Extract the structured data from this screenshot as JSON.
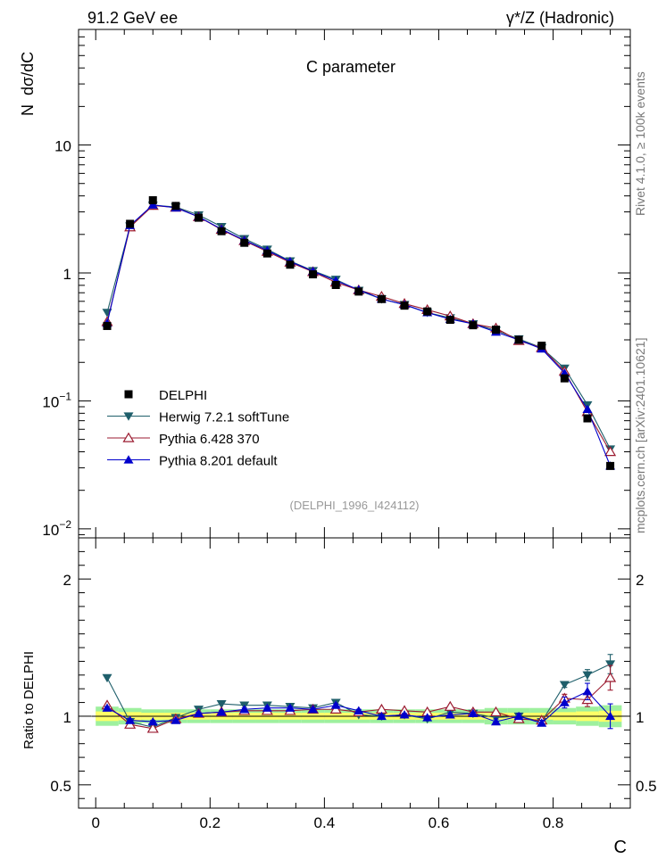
{
  "header": {
    "energy": "91.2 GeV ee",
    "process": "γ*/Z (Hadronic)"
  },
  "side_labels": {
    "rivet": "Rivet 4.1.0, ≥ 100k events",
    "mcplots": "mcplots.cern.ch [arXiv:2401.10621]"
  },
  "chart_data": [
    {
      "type": "line",
      "title": "C parameter",
      "ylabel": "N  dσ/dC",
      "yscale": "log",
      "xlim": [
        -0.03,
        0.935
      ],
      "ylim": [
        0.0085,
        80
      ],
      "watermark": "(DELPHI_1996_I424112)",
      "ytick_labels": [
        {
          "value": 10,
          "label": "10"
        },
        {
          "value": 1,
          "label": "1"
        },
        {
          "value": 0.1,
          "label": "10",
          "exp": "−1"
        },
        {
          "value": 0.01,
          "label": "10",
          "exp": "−2"
        }
      ],
      "x": [
        0.02,
        0.06,
        0.1,
        0.14,
        0.18,
        0.22,
        0.26,
        0.3,
        0.34,
        0.38,
        0.42,
        0.46,
        0.5,
        0.54,
        0.58,
        0.62,
        0.66,
        0.7,
        0.74,
        0.78,
        0.82,
        0.86,
        0.9
      ],
      "series": [
        {
          "name": "DELPHI",
          "style": "data",
          "color": "#000000",
          "values": [
            0.385,
            2.42,
            3.7,
            3.34,
            2.7,
            2.12,
            1.72,
            1.42,
            1.16,
            0.975,
            0.805,
            0.715,
            0.625,
            0.555,
            0.5,
            0.43,
            0.39,
            0.36,
            0.3,
            0.27,
            0.15,
            0.073,
            0.031
          ]
        },
        {
          "name": "Herwig 7.2.1 softTune",
          "style": "tri-down",
          "color": "#1f5f6b",
          "values": [
            0.49,
            2.32,
            3.38,
            3.28,
            2.84,
            2.3,
            1.85,
            1.53,
            1.24,
            1.04,
            0.89,
            0.73,
            0.625,
            0.565,
            0.49,
            0.445,
            0.4,
            0.355,
            0.305,
            0.26,
            0.18,
            0.093,
            0.042
          ]
        },
        {
          "name": "Pythia 6.428 370",
          "style": "tri-up-open",
          "color": "#9b1b30",
          "values": [
            0.415,
            2.28,
            3.36,
            3.25,
            2.74,
            2.18,
            1.78,
            1.47,
            1.21,
            1.02,
            0.845,
            0.735,
            0.655,
            0.575,
            0.515,
            0.46,
            0.4,
            0.37,
            0.295,
            0.26,
            0.17,
            0.082,
            0.04
          ]
        },
        {
          "name": "Pythia 8.201 default",
          "style": "tri-up",
          "color": "#0000cc",
          "values": [
            0.405,
            2.35,
            3.4,
            3.23,
            2.75,
            2.2,
            1.8,
            1.5,
            1.23,
            1.03,
            0.87,
            0.74,
            0.625,
            0.565,
            0.49,
            0.435,
            0.4,
            0.345,
            0.3,
            0.255,
            0.165,
            0.086,
            0.031
          ]
        }
      ]
    },
    {
      "type": "line",
      "ylabel": "Ratio to DELPHI",
      "xlabel": "C",
      "xlim": [
        -0.03,
        0.935
      ],
      "ylim": [
        0.33,
        2.3
      ],
      "yticks": [
        0.5,
        1,
        2
      ],
      "ytick_labels": [
        "0.5",
        "1",
        "2"
      ],
      "xtick_labels": [
        "0",
        "0.2",
        "0.4",
        "0.6",
        "0.8"
      ],
      "band_inner": [
        0.035,
        0.03,
        0.025,
        0.025,
        0.025,
        0.025,
        0.025,
        0.025,
        0.025,
        0.025,
        0.025,
        0.025,
        0.025,
        0.025,
        0.025,
        0.025,
        0.025,
        0.025,
        0.025,
        0.025,
        0.03,
        0.035,
        0.04
      ],
      "band_outer": [
        0.07,
        0.06,
        0.05,
        0.05,
        0.05,
        0.05,
        0.05,
        0.05,
        0.05,
        0.05,
        0.05,
        0.05,
        0.05,
        0.05,
        0.05,
        0.05,
        0.05,
        0.06,
        0.06,
        0.06,
        0.06,
        0.07,
        0.08
      ],
      "series": [
        {
          "name": "Herwig 7.2.1 softTune",
          "style": "tri-down",
          "color": "#1f5f6b",
          "values": [
            1.28,
            0.96,
            0.92,
            0.99,
            1.05,
            1.09,
            1.08,
            1.08,
            1.07,
            1.06,
            1.1,
            1.01,
            1.0,
            1.01,
            0.98,
            1.03,
            1.02,
            0.99,
            1.0,
            0.96,
            1.23,
            1.3,
            1.38
          ],
          "errors": [
            0,
            0,
            0,
            0,
            0,
            0,
            0,
            0,
            0,
            0,
            0,
            0,
            0,
            0,
            0,
            0,
            0,
            0,
            0,
            0,
            0.02,
            0.04,
            0.07
          ]
        },
        {
          "name": "Pythia 6.428 370",
          "style": "tri-up-open",
          "color": "#9b1b30",
          "values": [
            1.08,
            0.94,
            0.91,
            0.98,
            1.02,
            1.03,
            1.04,
            1.04,
            1.04,
            1.05,
            1.05,
            1.03,
            1.05,
            1.04,
            1.03,
            1.07,
            1.03,
            1.03,
            0.98,
            0.97,
            1.13,
            1.12,
            1.28
          ],
          "errors": [
            0,
            0,
            0,
            0,
            0,
            0,
            0,
            0,
            0,
            0,
            0,
            0,
            0,
            0,
            0,
            0,
            0,
            0,
            0,
            0,
            0.03,
            0.05,
            0.09
          ]
        },
        {
          "name": "Pythia 8.201 default",
          "style": "tri-up",
          "color": "#0000cc",
          "values": [
            1.06,
            0.97,
            0.96,
            0.97,
            1.02,
            1.03,
            1.05,
            1.06,
            1.06,
            1.05,
            1.08,
            1.04,
            1.0,
            1.01,
            0.99,
            1.01,
            1.02,
            0.96,
            1.0,
            0.95,
            1.1,
            1.18,
            1.0
          ],
          "errors": [
            0.01,
            0.01,
            0.01,
            0.01,
            0.01,
            0.01,
            0.01,
            0.01,
            0.01,
            0.01,
            0.01,
            0.01,
            0.01,
            0.01,
            0.01,
            0.01,
            0.01,
            0.02,
            0.02,
            0.02,
            0.04,
            0.06,
            0.09
          ]
        }
      ]
    }
  ],
  "colors": {
    "band_inner": "#ffff66",
    "band_outer": "#9ef09e"
  }
}
